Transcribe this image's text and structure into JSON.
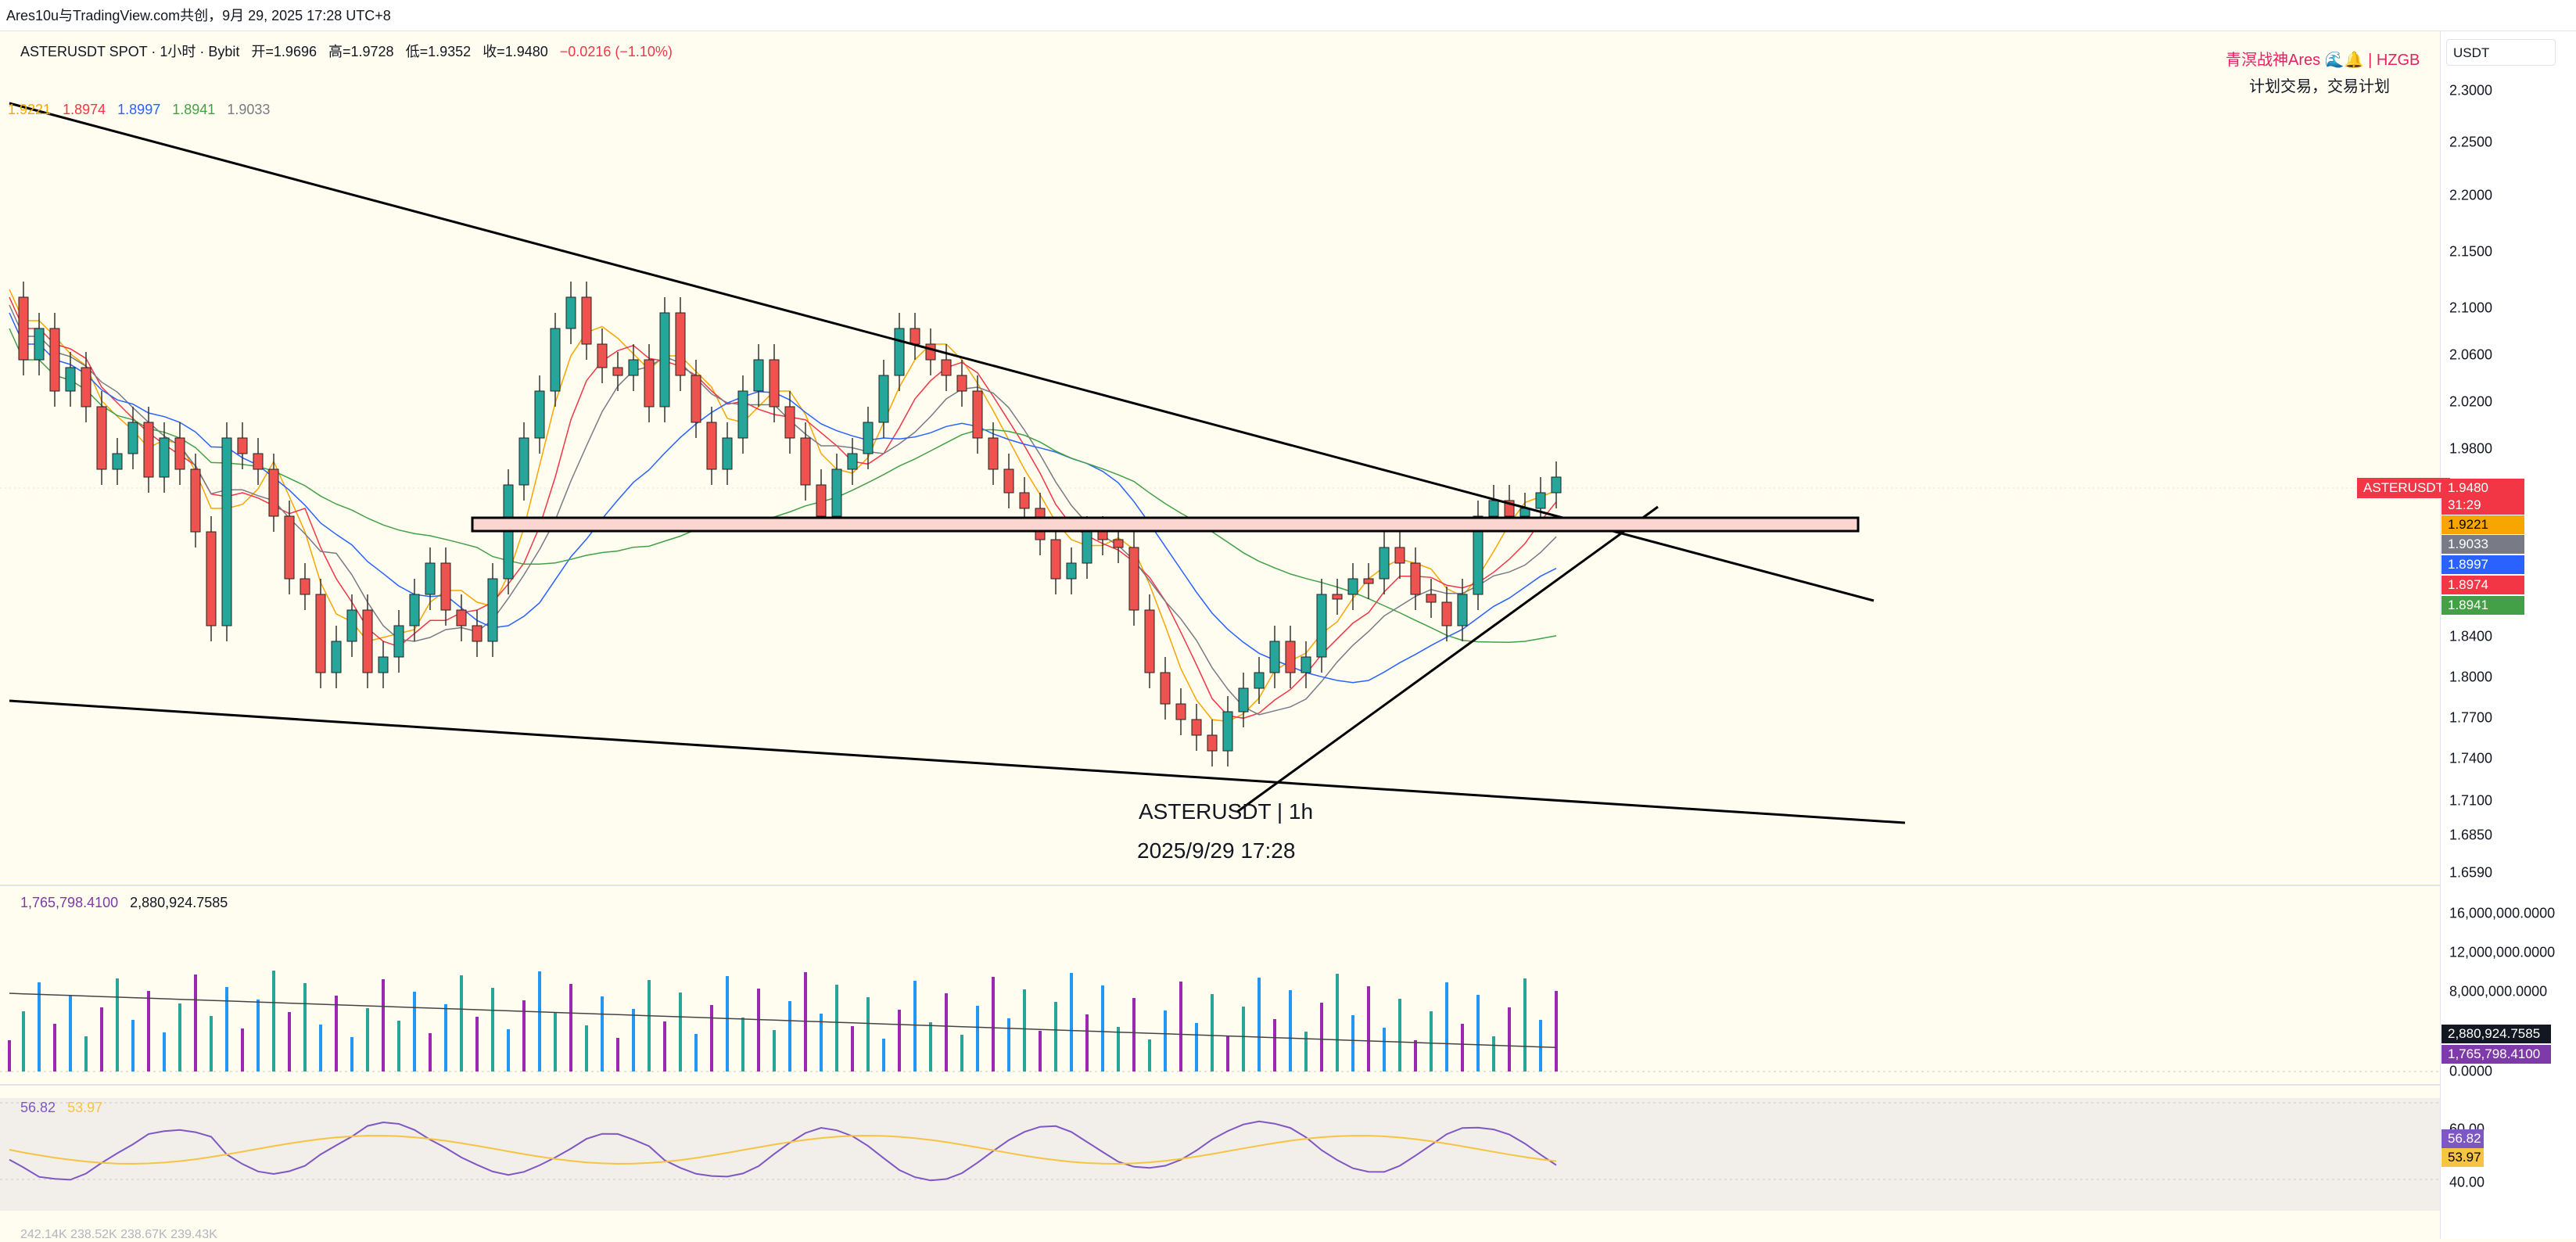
{
  "header": {
    "publish_line": "Ares10u与TradingView.com共创，9月 29, 2025 17:28 UTC+8"
  },
  "symbol_legend": {
    "symbol": "ASTERUSDT SPOT · 1小时 · Bybit",
    "open": "开=1.9696",
    "high": "高=1.9728",
    "low": "低=1.9352",
    "close": "收=1.9480",
    "change": "−0.0216 (−1.10%)"
  },
  "ma_legend": [
    {
      "value": "1.9221",
      "color": "#f7a600"
    },
    {
      "value": "1.8974",
      "color": "#f23645"
    },
    {
      "value": "1.8997",
      "color": "#2962ff"
    },
    {
      "value": "1.8941",
      "color": "#43a047"
    },
    {
      "value": "1.9033",
      "color": "#787b86"
    }
  ],
  "brand": {
    "name": "青溟战神Ares",
    "tag": "HZGB",
    "slogan": "计划交易，交易计划"
  },
  "currency_button": "USDT",
  "watermark": {
    "symbol_line": "ASTERUSDT | 1h",
    "datetime": "2025/9/29 17:28"
  },
  "price_axis": [
    "2.3000",
    "2.2500",
    "2.2000",
    "2.1500",
    "2.1000",
    "2.0600",
    "2.0200",
    "1.9800",
    "1.8400",
    "1.8000",
    "1.7700",
    "1.7400",
    "1.7100",
    "1.6850",
    "1.6590"
  ],
  "price_badges": {
    "symbol_tag": "ASTERUSDT",
    "last": "1.9480",
    "countdown": "31:29",
    "ma1": "1.9221",
    "ma2": "1.9033",
    "ma3": "1.8997",
    "ma4": "1.8974",
    "ma5": "1.8941"
  },
  "volume_legend": {
    "v1": "1,765,798.4100",
    "v2": "2,880,924.7585"
  },
  "volume_axis": [
    "16,000,000.0000",
    "12,000,000.0000",
    "8,000,000.0000",
    "0.0000"
  ],
  "volume_badges": {
    "ma": "2,880,924.7585",
    "last": "1,765,798.4100"
  },
  "rsi_legend": {
    "rsi": "56.82",
    "ma": "53.97"
  },
  "rsi_axis": [
    "60.00",
    "40.00"
  ],
  "rsi_badges": {
    "rsi": "56.82",
    "ma": "53.97"
  },
  "bottom_partial": "242.14K  238.52K  238.67K  239.43K",
  "colors": {
    "up": "#26a69a",
    "down": "#ef5350",
    "rsi": "#7e57c2",
    "rsi_ma": "#f7c343"
  }
}
